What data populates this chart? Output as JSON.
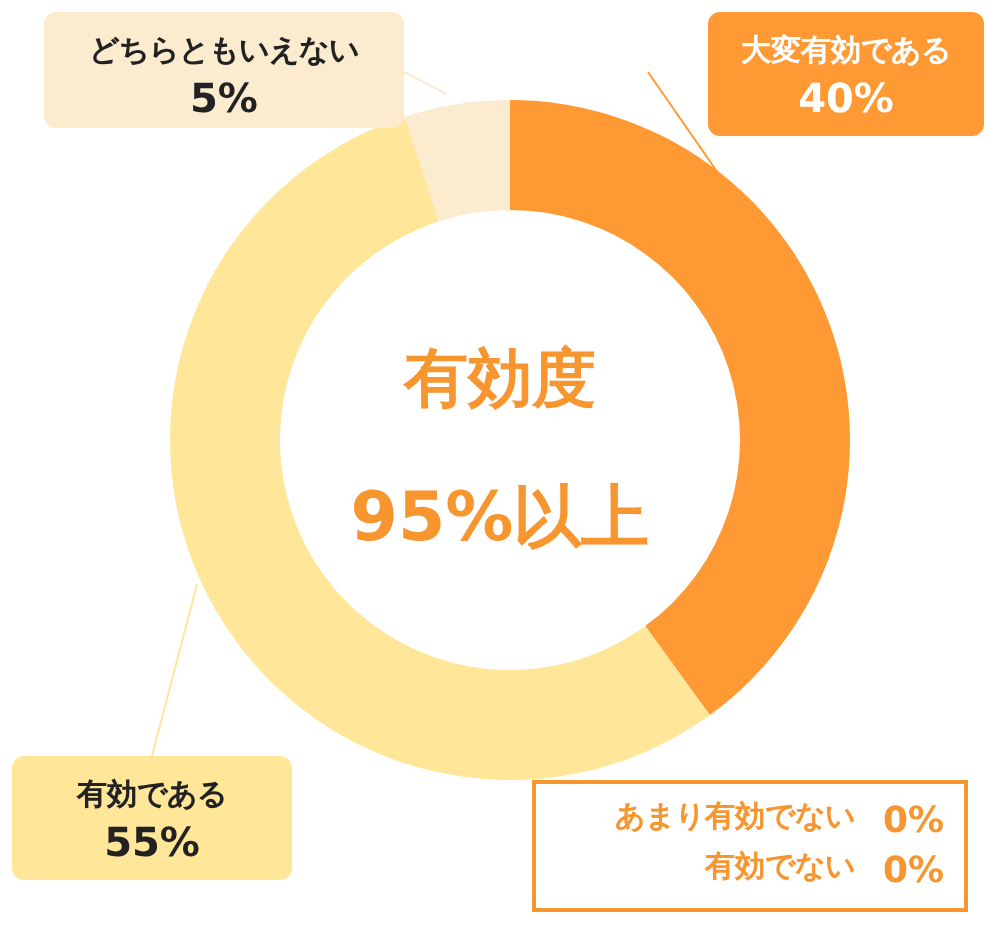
{
  "chart_data": {
    "type": "donut",
    "title": "有効度",
    "subtitle": "95%以上",
    "categories": [
      "大変有効である",
      "有効である",
      "どちらともいえない",
      "あまり有効でない",
      "有効でない"
    ],
    "values": [
      40,
      55,
      5,
      0,
      0
    ],
    "value_labels": [
      "40%",
      "55%",
      "5%",
      "0%",
      "0%"
    ],
    "colors": [
      "#ff9933",
      "#ffe699",
      "#fbebcf",
      null,
      null
    ]
  }
}
